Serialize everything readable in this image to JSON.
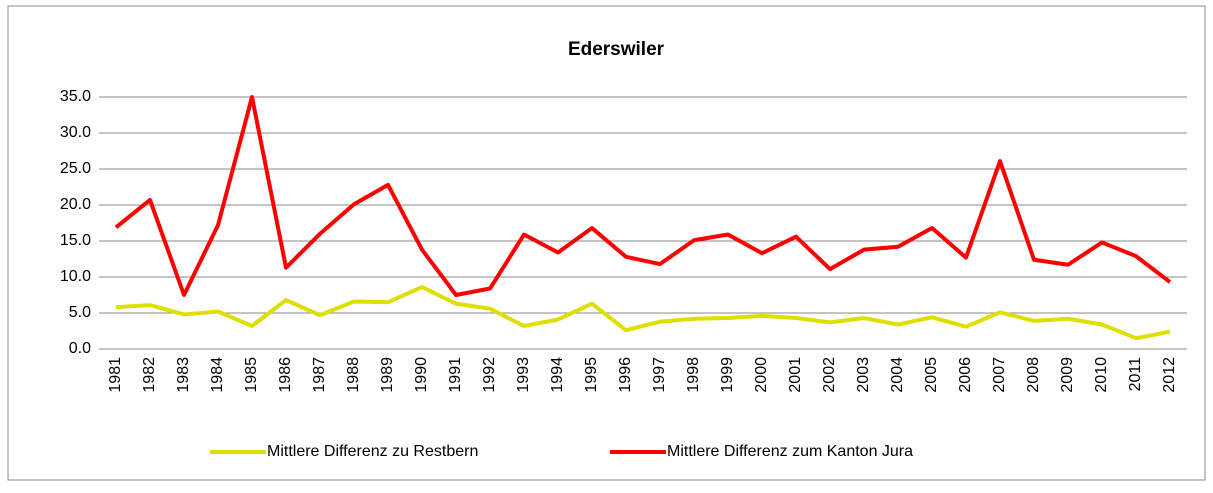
{
  "chart_data": {
    "type": "line",
    "title": "Ederswiler",
    "categories": [
      "1981",
      "1982",
      "1983",
      "1984",
      "1985",
      "1986",
      "1987",
      "1988",
      "1989",
      "1990",
      "1991",
      "1992",
      "1993",
      "1994",
      "1995",
      "1996",
      "1997",
      "1998",
      "1999",
      "2000",
      "2001",
      "2002",
      "2003",
      "2004",
      "2005",
      "2006",
      "2007",
      "2008",
      "2009",
      "2010",
      "2011",
      "2012"
    ],
    "series": [
      {
        "name": "Mittlere Differenz zu Restbern",
        "color": "#dede00",
        "values": [
          5.8,
          6.1,
          4.8,
          5.2,
          3.2,
          6.8,
          4.7,
          6.6,
          6.5,
          8.6,
          6.3,
          5.6,
          3.2,
          4.1,
          6.3,
          2.6,
          3.8,
          4.2,
          4.3,
          4.6,
          4.3,
          3.7,
          4.3,
          3.4,
          4.4,
          3.1,
          5.1,
          3.9,
          4.2,
          3.4,
          1.5,
          2.4
        ]
      },
      {
        "name": "Mittlere Differenz zum Kanton Jura",
        "color": "#ff0000",
        "values": [
          16.9,
          20.7,
          7.5,
          17.2,
          35.0,
          11.3,
          16.0,
          20.1,
          22.8,
          13.8,
          7.5,
          8.4,
          15.9,
          13.4,
          16.8,
          12.8,
          11.8,
          15.1,
          15.9,
          13.3,
          15.6,
          11.1,
          13.8,
          14.2,
          16.8,
          12.7,
          26.1,
          12.4,
          11.7,
          14.8,
          12.9,
          9.3
        ]
      }
    ],
    "ylim": [
      0,
      35
    ],
    "yticks": [
      {
        "value": 0,
        "label": "0.0"
      },
      {
        "value": 5,
        "label": "5.0"
      },
      {
        "value": 10,
        "label": "10.0"
      },
      {
        "value": 15,
        "label": "15.0"
      },
      {
        "value": 20,
        "label": "20.0"
      },
      {
        "value": 25,
        "label": "25.0"
      },
      {
        "value": 30,
        "label": "30.0"
      },
      {
        "value": 35,
        "label": "35.0"
      }
    ],
    "grid": true,
    "legend": "bottom"
  }
}
